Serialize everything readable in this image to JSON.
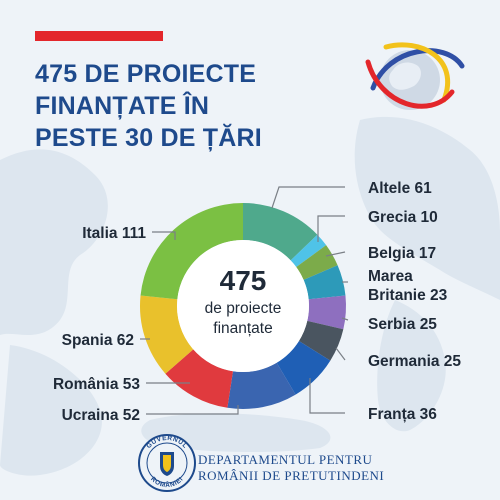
{
  "header": {
    "title_lines": [
      "475 DE PROIECTE",
      "FINANȚATE  ÎN",
      "PESTE 30 DE ȚĂRI"
    ]
  },
  "center": {
    "total": "475",
    "line1": "de proiecte",
    "line2": "finanțate"
  },
  "footer": {
    "line1": "DEPARTAMENTUL PENTRU",
    "line2": "ROMÂNII DE PRETUTINDENI",
    "seal_text_top": "GUVERNUL",
    "seal_text_bottom": "ROMÂNIEI"
  },
  "colors": {
    "title": "#1e4a8c",
    "accent_red": "#e3262b",
    "background": "#eef3f8",
    "label": "#1f2a38",
    "leader": "#7a7f86"
  },
  "chart_data": {
    "type": "pie",
    "variant": "donut",
    "total": 475,
    "slices": [
      {
        "name": "Altele",
        "label": "Altele  61",
        "value": 61,
        "color": "#4fa98c"
      },
      {
        "name": "Grecia",
        "label": "Grecia 10",
        "value": 10,
        "color": "#4fc3e8"
      },
      {
        "name": "Belgia",
        "label": "Belgia  17",
        "value": 17,
        "color": "#7cab4a"
      },
      {
        "name": "Marea Britanie",
        "label": [
          "Marea",
          "Britanie 23"
        ],
        "value": 23,
        "color": "#2d9ab9"
      },
      {
        "name": "Serbia",
        "label": "Serbia 25",
        "value": 25,
        "color": "#8e6fbf"
      },
      {
        "name": "Germania",
        "label": "Germania 25",
        "value": 25,
        "color": "#4a5560"
      },
      {
        "name": "Franța",
        "label": "Franța 36",
        "value": 36,
        "color": "#1f5fb5"
      },
      {
        "name": "Ucraina",
        "label": "Ucraina 52",
        "value": 52,
        "color": "#3a65b0"
      },
      {
        "name": "România",
        "label": "România 53",
        "value": 53,
        "color": "#e03a3e"
      },
      {
        "name": "Spania",
        "label": "Spania 62",
        "value": 62,
        "color": "#e9c12c"
      },
      {
        "name": "Italia",
        "label": "Italia 111",
        "value": 111,
        "color": "#7bc043"
      }
    ]
  }
}
